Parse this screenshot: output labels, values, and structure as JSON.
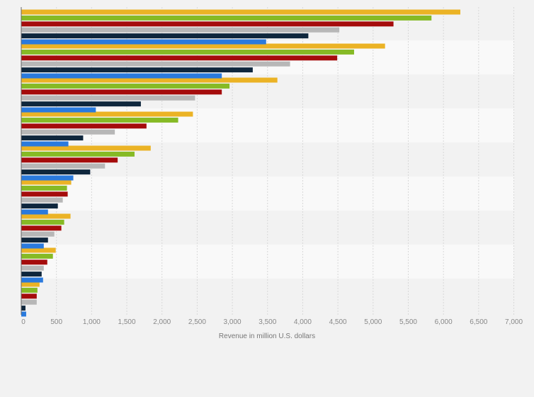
{
  "chart_data": {
    "type": "bar",
    "orientation": "horizontal",
    "title": "",
    "xlabel": "Revenue in million U.S. dollars",
    "ylabel": "",
    "xlim": [
      0,
      7000
    ],
    "xticks": [
      0,
      500,
      1000,
      1500,
      2000,
      2500,
      3000,
      3500,
      4000,
      4500,
      5000,
      5500,
      6000,
      6500,
      7000
    ],
    "xtick_labels": [
      "0",
      "500",
      "1,000",
      "1,500",
      "2,000",
      "2,500",
      "3,000",
      "3,500",
      "4,000",
      "4,500",
      "5,000",
      "5,500",
      "6,000",
      "6,500",
      "7,000"
    ],
    "grid": true,
    "groups": 9,
    "series": [
      {
        "color": "#ebb325",
        "values": [
          6240,
          5170,
          3640,
          2440,
          1840,
          710,
          700,
          490,
          260
        ]
      },
      {
        "color": "#86ba25",
        "values": [
          5830,
          4730,
          2960,
          2230,
          1610,
          650,
          610,
          450,
          230
        ]
      },
      {
        "color": "#a50c0c",
        "values": [
          5290,
          4490,
          2850,
          1780,
          1370,
          660,
          570,
          370,
          220
        ]
      },
      {
        "color": "#b7b7b7",
        "values": [
          4520,
          3820,
          2470,
          1330,
          1190,
          590,
          470,
          320,
          220
        ]
      },
      {
        "color": "#0f273d",
        "values": [
          4080,
          3290,
          1700,
          880,
          980,
          520,
          380,
          290,
          60
        ]
      },
      {
        "color": "#2a7add",
        "values": [
          3480,
          2850,
          1060,
          670,
          740,
          380,
          320,
          310,
          70
        ]
      }
    ]
  }
}
